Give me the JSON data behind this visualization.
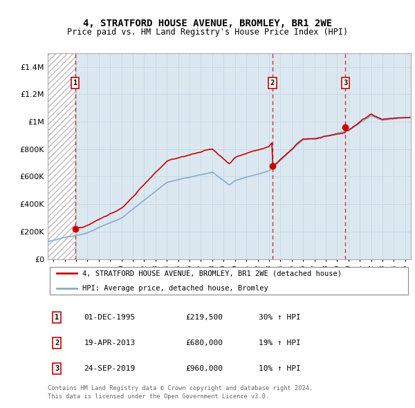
{
  "title": "4, STRATFORD HOUSE AVENUE, BROMLEY, BR1 2WE",
  "subtitle": "Price paid vs. HM Land Registry's House Price Index (HPI)",
  "legend_line1": "4, STRATFORD HOUSE AVENUE, BROMLEY, BR1 2WE (detached house)",
  "legend_line2": "HPI: Average price, detached house, Bromley",
  "footer1": "Contains HM Land Registry data © Crown copyright and database right 2024.",
  "footer2": "This data is licensed under the Open Government Licence v3.0.",
  "sales": [
    {
      "num": 1,
      "date": "01-DEC-1995",
      "price": 219500,
      "pct": "30%",
      "dir": "↑",
      "year": 1995.917
    },
    {
      "num": 2,
      "date": "19-APR-2013",
      "price": 680000,
      "pct": "19%",
      "dir": "↑",
      "year": 2013.3
    },
    {
      "num": 3,
      "date": "24-SEP-2019",
      "price": 960000,
      "pct": "10%",
      "dir": "↑",
      "year": 2019.73
    }
  ],
  "sale_prices": [
    219500,
    680000,
    960000
  ],
  "sale_years": [
    1995.917,
    2013.3,
    2019.73
  ],
  "red_color": "#cc0000",
  "blue_color": "#88aacc",
  "grid_color": "#c8d8e8",
  "bg_color": "#dce8f0",
  "ylim": [
    0,
    1500000
  ],
  "xlim_start": 1993.5,
  "xlim_end": 2025.5,
  "xtick_start": 1994,
  "xtick_end": 2025
}
